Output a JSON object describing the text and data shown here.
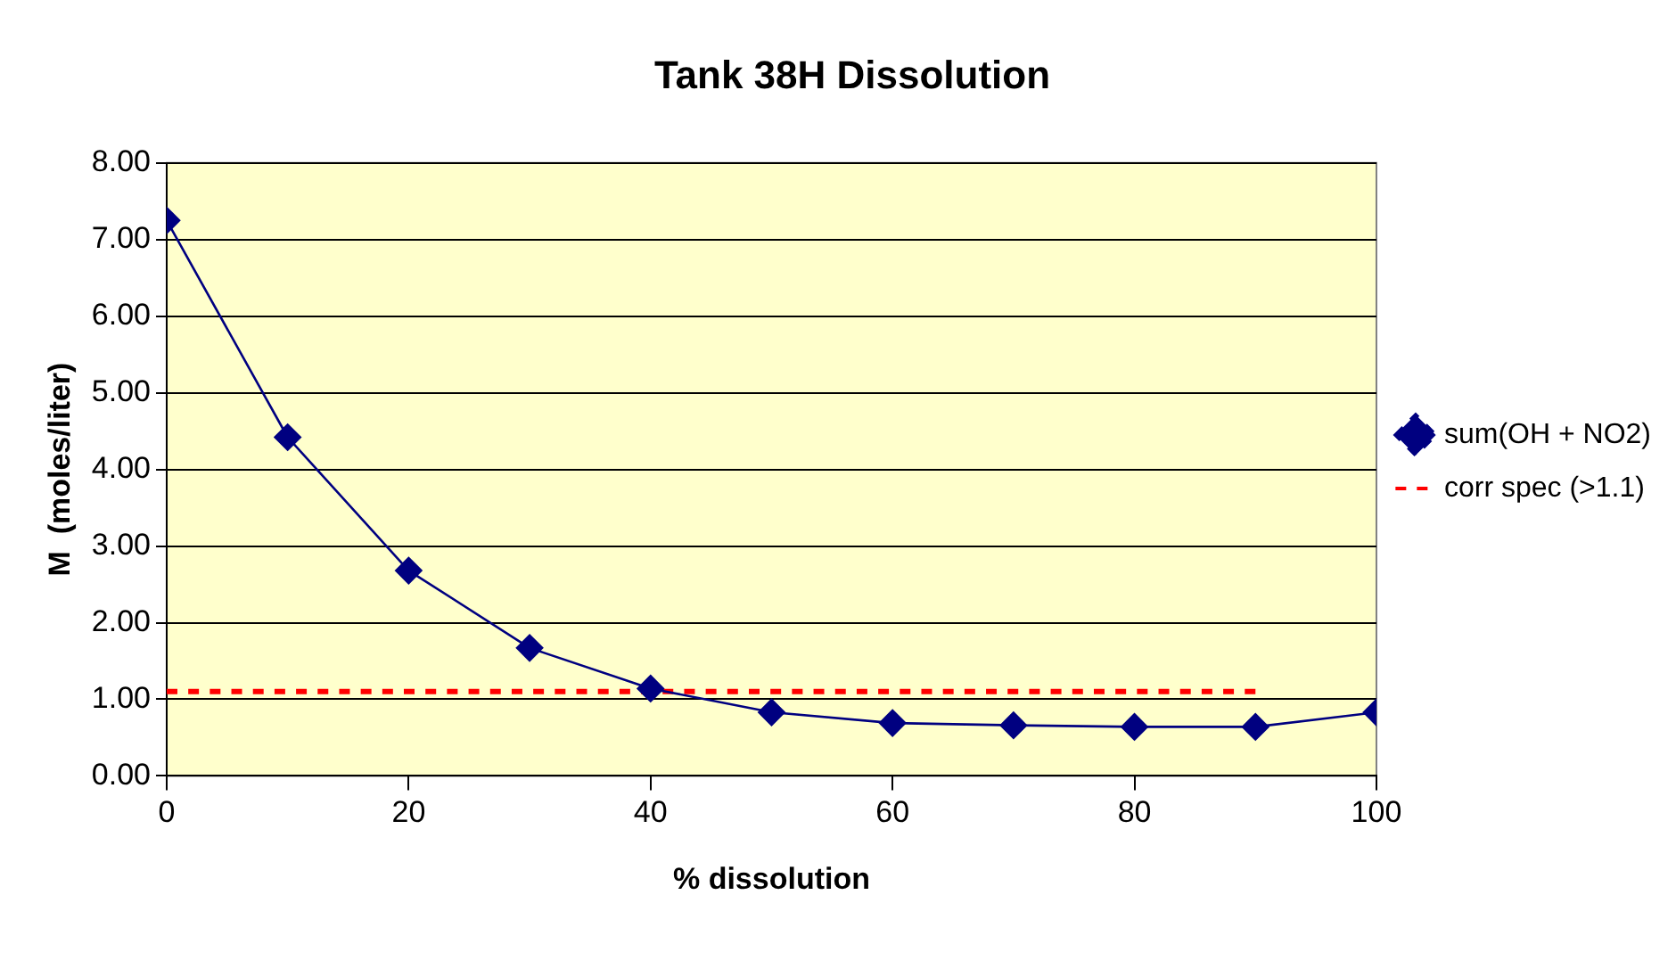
{
  "chart_data": {
    "type": "line",
    "title": "Tank 38H Dissolution",
    "xlabel": "% dissolution",
    "ylabel": "M  (moles/liter)",
    "xlim": [
      0,
      100
    ],
    "xticks": [
      0,
      20,
      40,
      60,
      80,
      100
    ],
    "ylim": [
      0,
      8
    ],
    "yticks": [
      {
        "value": 0,
        "label": "0.00"
      },
      {
        "value": 1,
        "label": "1.00"
      },
      {
        "value": 2,
        "label": "2.00"
      },
      {
        "value": 3,
        "label": "3.00"
      },
      {
        "value": 4,
        "label": "4.00"
      },
      {
        "value": 5,
        "label": "5.00"
      },
      {
        "value": 6,
        "label": "6.00"
      },
      {
        "value": 7,
        "label": "7.00"
      },
      {
        "value": 8,
        "label": "8.00"
      }
    ],
    "grid": "y",
    "legend": "right",
    "series": [
      {
        "name": "sum(OH + NO2)",
        "color": "#000080",
        "marker": "diamond",
        "line_style": "solid",
        "x": [
          0,
          10,
          20,
          30,
          40,
          50,
          60,
          70,
          80,
          90,
          100
        ],
        "values": [
          7.25,
          4.42,
          2.68,
          1.67,
          1.14,
          0.83,
          0.69,
          0.66,
          0.64,
          0.64,
          0.83
        ]
      },
      {
        "name": "corr spec (>1.1)",
        "color": "#ff0000",
        "marker": "none",
        "line_style": "dashed",
        "x": [
          0,
          90
        ],
        "values": [
          1.1,
          1.1
        ]
      }
    ]
  }
}
